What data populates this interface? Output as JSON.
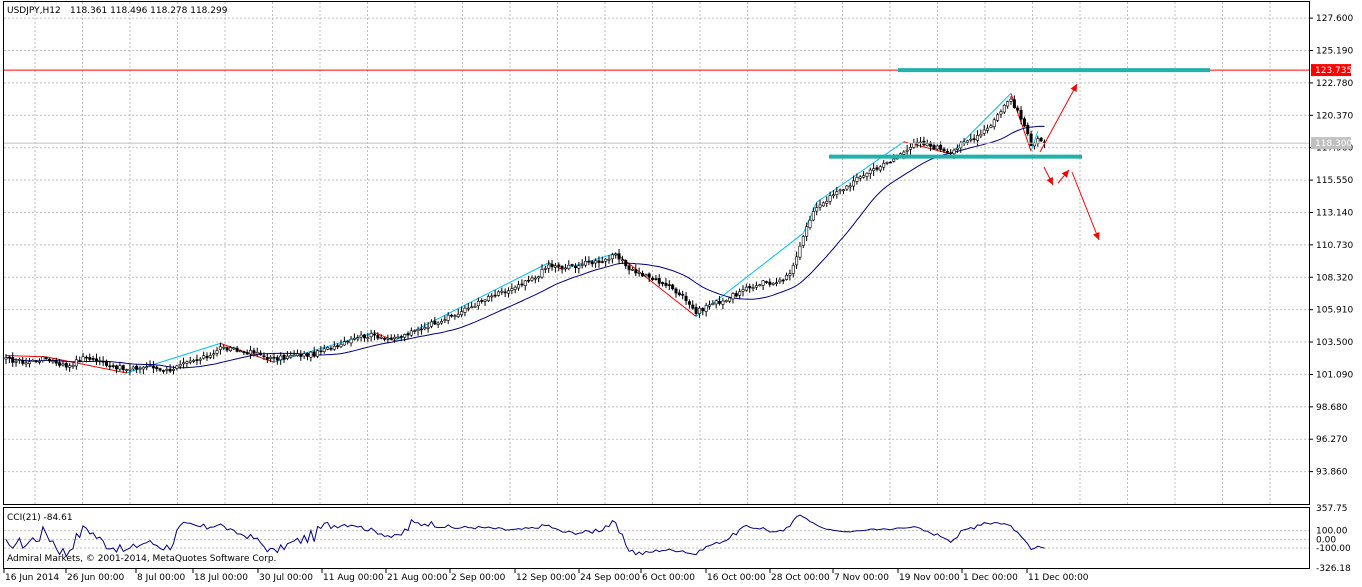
{
  "header": {
    "symbol": "USDJPY,H12",
    "ohlc": "118.361 118.496 118.278 118.299"
  },
  "cci": {
    "title": "CCI(21) -84.61",
    "levels": [
      "357.75",
      "100.00",
      "0.00",
      "-100.00",
      "-326.18"
    ]
  },
  "copyright": "Admiral Markets, © 2001-2014, MetaQuotes Software Corp.",
  "colors": {
    "bull_candle": "#ffffff",
    "bear_candle": "#000000",
    "ma": "#00008b",
    "zigzag_up": "#00bfff",
    "zigzag_down": "#ff0000",
    "resistance_line": "#ff0000",
    "support_zone": "#20b2aa",
    "arrows": "#ff0000",
    "grid": "#c0c0c0",
    "cci": "#00008b",
    "price_badge_current": "#c0c0c0",
    "price_badge_resistance": "#ff0000"
  },
  "chart_data": {
    "type": "candlestick",
    "timeframe": "H12",
    "y_axis_labels": [
      "127.600",
      "125.190",
      "122.780",
      "120.370",
      "117.960",
      "115.550",
      "113.140",
      "110.730",
      "108.320",
      "105.910",
      "103.500",
      "101.090",
      "98.680",
      "96.270",
      "93.860"
    ],
    "ylim": [
      91.45,
      128.8
    ],
    "x_axis_labels": [
      "16 Jun 2014",
      "26 Jun 00:00",
      "8 Jul 00:00",
      "18 Jul 00:00",
      "30 Jul 00:00",
      "11 Aug 00:00",
      "21 Aug 00:00",
      "2 Sep 00:00",
      "12 Sep 00:00",
      "24 Sep 00:00",
      "6 Oct 00:00",
      "16 Oct 00:00",
      "28 Oct 00:00",
      "7 Nov 00:00",
      "19 Nov 00:00",
      "1 Dec 00:00",
      "11 Dec 00:00"
    ],
    "anchors": [
      [
        0,
        102.2
      ],
      [
        6,
        102.0
      ],
      [
        12,
        102.3
      ],
      [
        18,
        101.7
      ],
      [
        24,
        102.4
      ],
      [
        30,
        101.9
      ],
      [
        36,
        101.4
      ],
      [
        42,
        101.7
      ],
      [
        48,
        101.4
      ],
      [
        54,
        101.9
      ],
      [
        60,
        102.4
      ],
      [
        64,
        103.1
      ],
      [
        68,
        102.9
      ],
      [
        74,
        102.7
      ],
      [
        80,
        102.2
      ],
      [
        86,
        102.5
      ],
      [
        92,
        102.6
      ],
      [
        98,
        103.2
      ],
      [
        104,
        103.9
      ],
      [
        110,
        104.0
      ],
      [
        116,
        103.7
      ],
      [
        122,
        104.3
      ],
      [
        128,
        105.0
      ],
      [
        134,
        105.5
      ],
      [
        140,
        106.3
      ],
      [
        146,
        107.0
      ],
      [
        152,
        107.5
      ],
      [
        158,
        108.3
      ],
      [
        162,
        109.2
      ],
      [
        166,
        109.0
      ],
      [
        172,
        109.3
      ],
      [
        178,
        109.6
      ],
      [
        182,
        109.9
      ],
      [
        186,
        109.0
      ],
      [
        190,
        108.5
      ],
      [
        196,
        107.9
      ],
      [
        202,
        107.0
      ],
      [
        206,
        105.7
      ],
      [
        210,
        106.3
      ],
      [
        214,
        106.6
      ],
      [
        220,
        107.3
      ],
      [
        226,
        108.0
      ],
      [
        230,
        107.8
      ],
      [
        234,
        108.5
      ],
      [
        238,
        111.5
      ],
      [
        242,
        113.6
      ],
      [
        248,
        114.6
      ],
      [
        254,
        115.6
      ],
      [
        258,
        116.3
      ],
      [
        264,
        116.9
      ],
      [
        268,
        117.8
      ],
      [
        272,
        118.3
      ],
      [
        276,
        118.1
      ],
      [
        282,
        117.7
      ],
      [
        286,
        118.3
      ],
      [
        290,
        118.9
      ],
      [
        294,
        119.7
      ],
      [
        298,
        121.1
      ],
      [
        300,
        121.6
      ],
      [
        302,
        120.6
      ],
      [
        304,
        119.6
      ],
      [
        306,
        118.1
      ],
      [
        308,
        118.8
      ],
      [
        310,
        118.3
      ]
    ],
    "candle_count": 311,
    "ma_period": 24,
    "resistance_level": 123.735,
    "current_price": 118.3,
    "price_badges": [
      "123.735",
      "118.300"
    ],
    "support_level": 117.3,
    "cci_range": [
      -326.18,
      357.75
    ]
  }
}
